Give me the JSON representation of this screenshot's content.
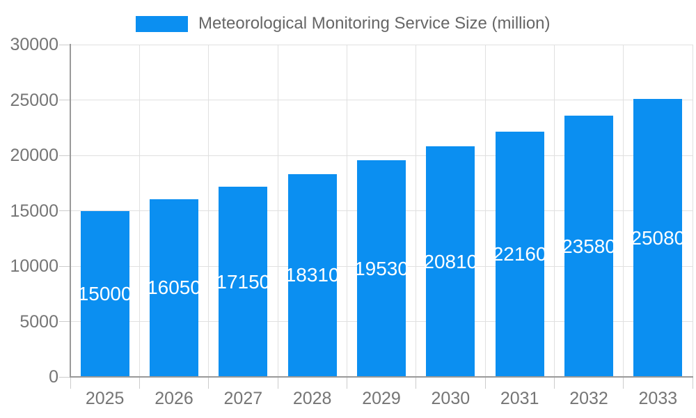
{
  "chart_data": {
    "type": "bar",
    "title": "Meteorological Monitoring Service Size (million)",
    "categories": [
      "2025",
      "2026",
      "2027",
      "2028",
      "2029",
      "2030",
      "2031",
      "2032",
      "2033"
    ],
    "values": [
      15000,
      16050,
      17150,
      18310,
      19530,
      20810,
      22160,
      23580,
      25080
    ],
    "series": [
      {
        "name": "Meteorological Monitoring Service Size (million)",
        "values": [
          15000,
          16050,
          17150,
          18310,
          19530,
          20810,
          22160,
          23580,
          25080
        ]
      }
    ],
    "xlabel": "",
    "ylabel": "",
    "ylim": [
      0,
      30000
    ],
    "yticks": [
      0,
      5000,
      10000,
      15000,
      20000,
      25000,
      30000
    ],
    "grid": "both",
    "legend_position": "top-center",
    "bar_labels_inside": true,
    "colors": {
      "bar": "#0b8ff1",
      "grid_line": "#e0e0e0",
      "axis_line": "#999999",
      "tick_mark": "#cccccc",
      "tick_label": "#757575",
      "legend_text": "#666666",
      "bar_label": "#ffffff",
      "background": "#ffffff"
    }
  }
}
